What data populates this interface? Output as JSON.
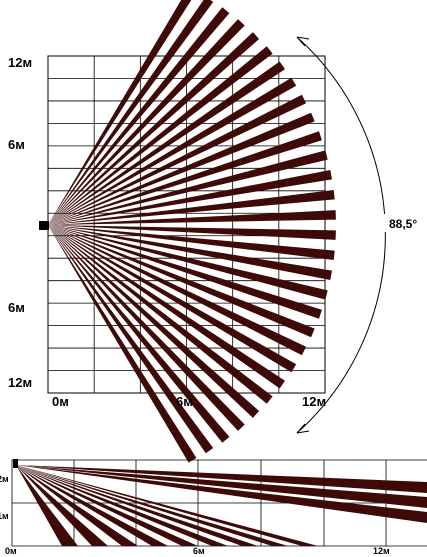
{
  "colors": {
    "beam": "#3d0a08",
    "grid": "#000000",
    "background": "#ffffff"
  },
  "top_view": {
    "y_labels": [
      "12м",
      "6м",
      "6м",
      "12м"
    ],
    "x_labels": [
      "0м",
      "6м",
      "12м"
    ],
    "angle_label": "88,5°",
    "beam_count": 30
  },
  "side_view": {
    "y_labels": [
      "2м",
      "1м"
    ],
    "x_labels": [
      "0м",
      "6м",
      "12м"
    ],
    "beam_count": 12
  }
}
